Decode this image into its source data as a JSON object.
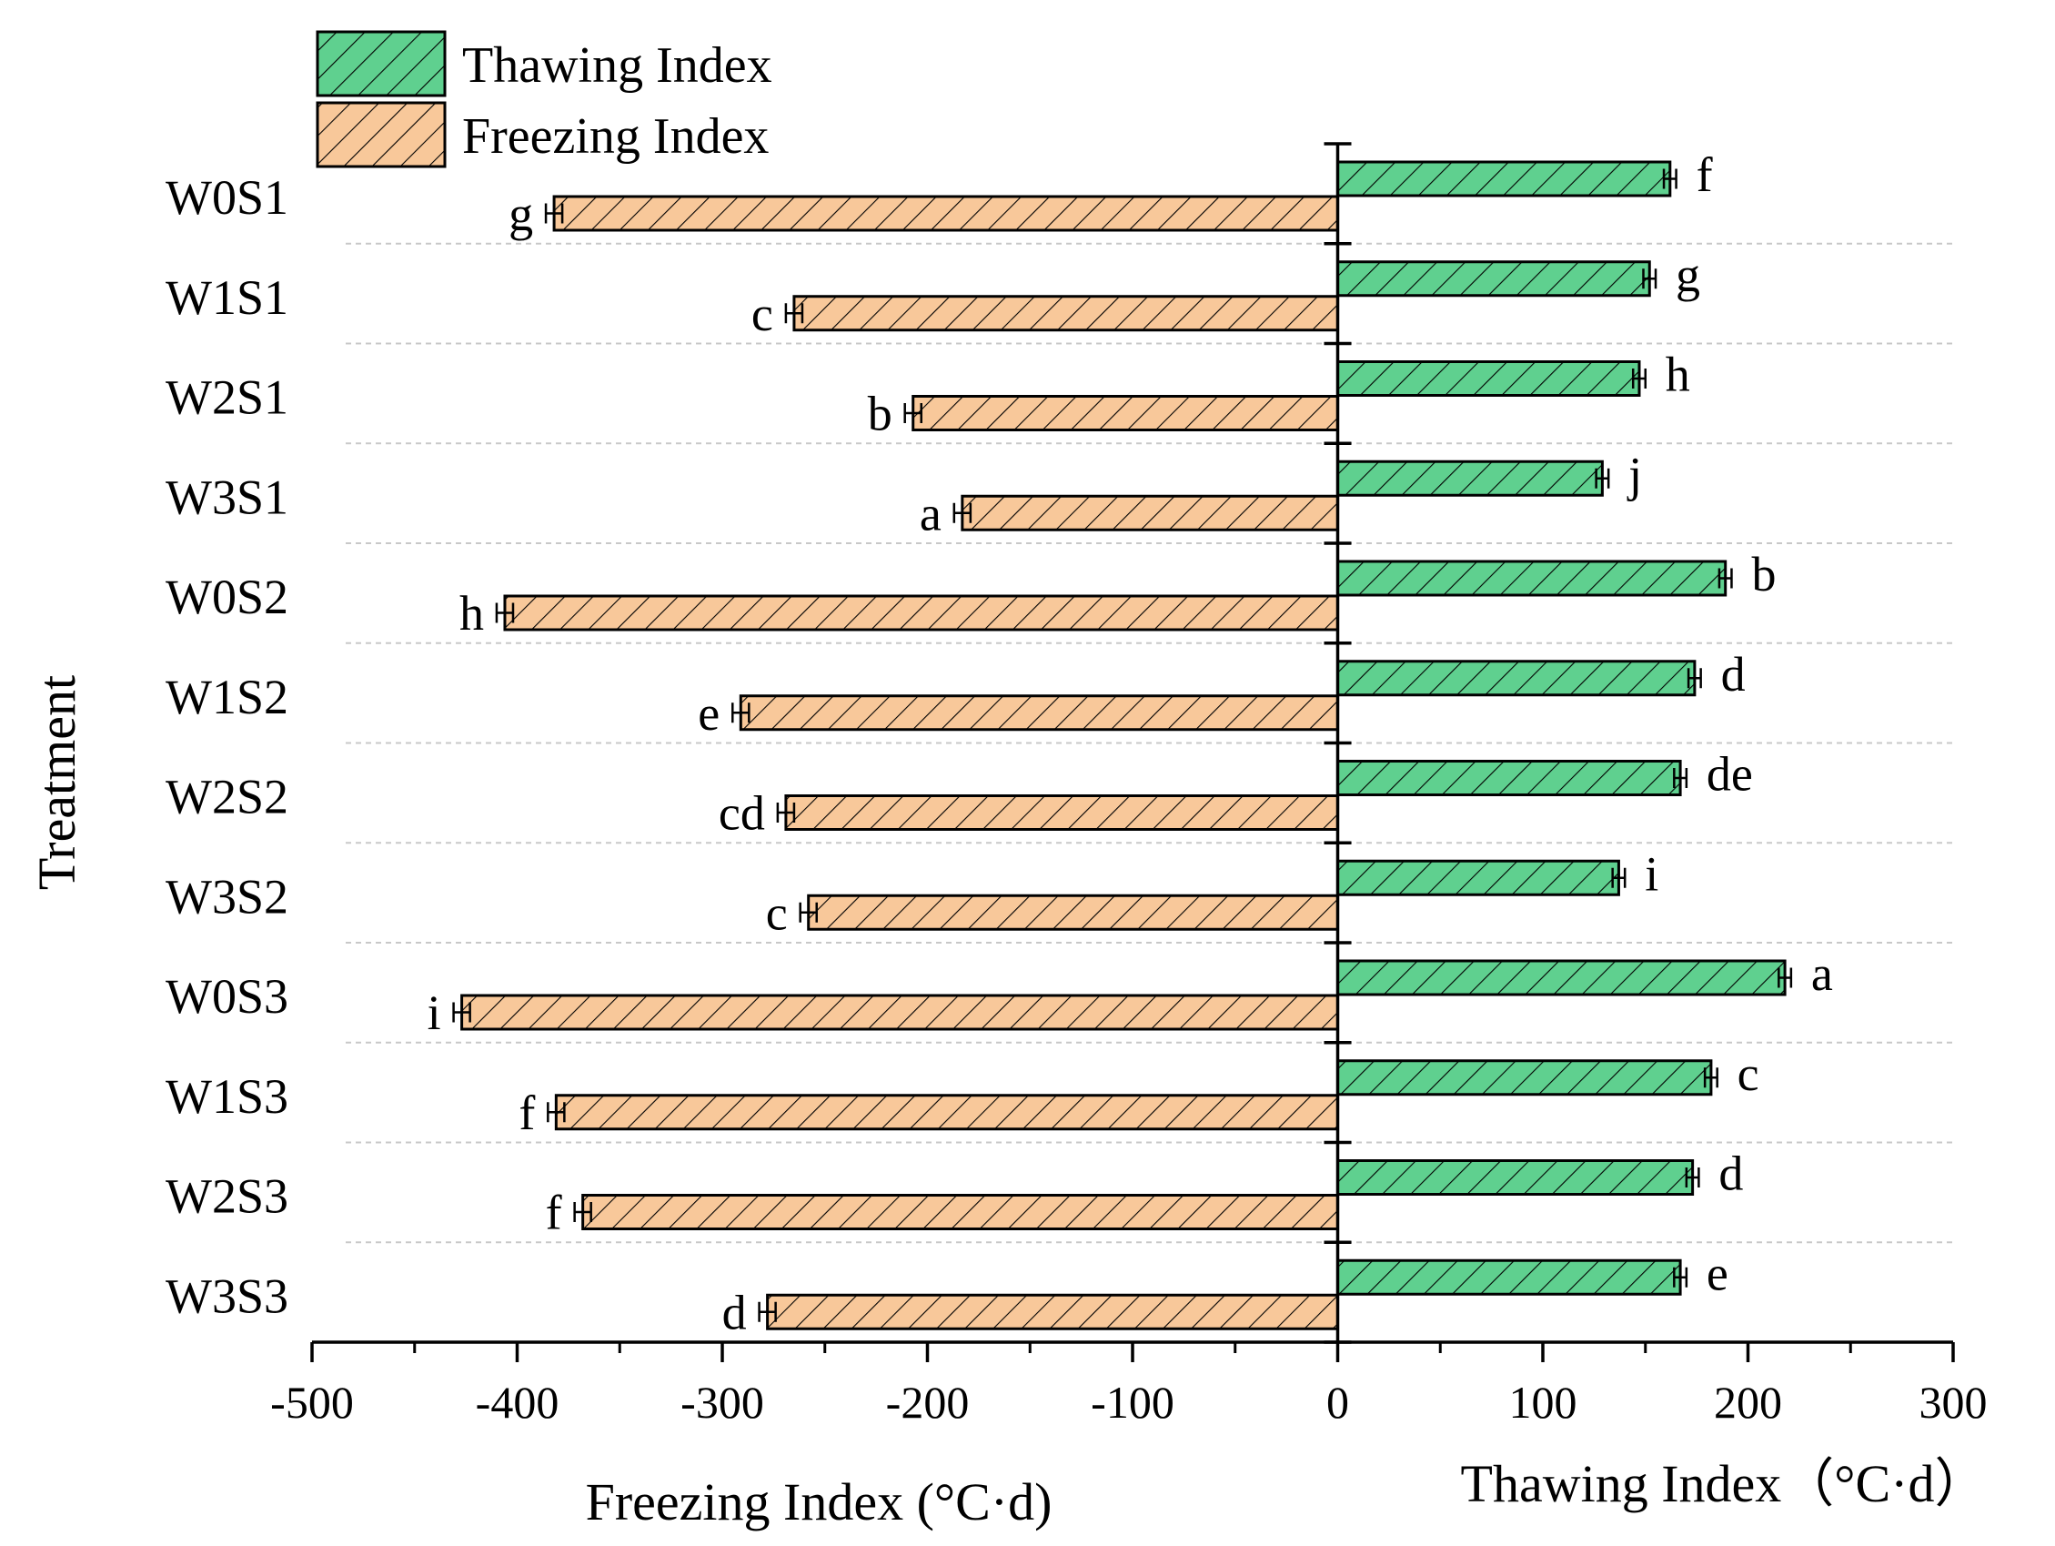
{
  "colors": {
    "thawing_fill": "#5fd08f",
    "freezing_fill": "#f8c89a",
    "stroke": "#000000",
    "grid": "#c8c8c8"
  },
  "chart_data": {
    "type": "bar",
    "orientation": "horizontal",
    "title": "",
    "ylabel": "Treatment",
    "xlabel_left": "Freezing Index (°C·d)",
    "xlabel_right": "Thawing Index（°C·d）",
    "xlim": [
      -500,
      300
    ],
    "xticks": [
      -500,
      -400,
      -300,
      -200,
      -100,
      0,
      100,
      200,
      300
    ],
    "xtick_labels": [
      "-500",
      "-400",
      "-300",
      "-200",
      "-100",
      "0",
      "100",
      "200",
      "300"
    ],
    "legend": {
      "placement": "top-left",
      "entries": [
        "Thawing Index",
        "Freezing Index"
      ]
    },
    "grid": "horizontal dashed separators",
    "categories": [
      "W0S1",
      "W1S1",
      "W2S1",
      "W3S1",
      "W0S2",
      "W1S2",
      "W2S2",
      "W3S2",
      "W0S3",
      "W1S3",
      "W2S3",
      "W3S3"
    ],
    "series": [
      {
        "name": "Thawing Index",
        "values": [
          162,
          152,
          147,
          129,
          189,
          174,
          167,
          137,
          218,
          182,
          173,
          167
        ],
        "errors": [
          3,
          3,
          3,
          3,
          3,
          3,
          3,
          3,
          3,
          3,
          3,
          3
        ],
        "letters": [
          "f",
          "g",
          "h",
          "j",
          "b",
          "d",
          "de",
          "i",
          "a",
          "c",
          "d",
          "e"
        ]
      },
      {
        "name": "Freezing Index",
        "values": [
          -382,
          -265,
          -207,
          -183,
          -406,
          -291,
          -269,
          -258,
          -427,
          -381,
          -368,
          -278
        ],
        "errors": [
          4,
          4,
          4,
          4,
          4,
          4,
          4,
          4,
          4,
          4,
          4,
          4
        ],
        "letters": [
          "g",
          "c",
          "b",
          "a",
          "h",
          "e",
          "cd",
          "c",
          "i",
          "f",
          "f",
          "d"
        ]
      }
    ]
  }
}
